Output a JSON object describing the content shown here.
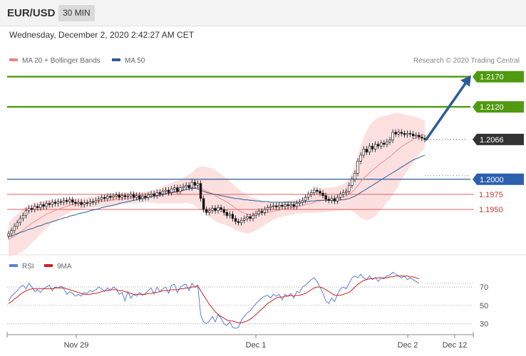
{
  "header": {
    "symbol": "EUR/USD",
    "timeframe": "30 MIN"
  },
  "datetime": "Wednesday, December 2, 2020 2:42:27 AM CET",
  "legend": {
    "ma20": "MA 20 + Bollinger Bands",
    "ma50": "MA 50",
    "ma20_color": "#f08080",
    "ma50_color": "#2c5d9a",
    "credit": "Research © 2020 Trading Central"
  },
  "rsi_legend": {
    "rsi": "RSI",
    "ma9": "9MA",
    "rsi_color": "#5b7fd6",
    "ma9_color": "#cc2222"
  },
  "colors": {
    "target": "#4f9a0f",
    "pivot": "#2c5d9a",
    "support": "#e06060",
    "last": "#333333",
    "arrow": "#2c5d9a"
  },
  "chart_data": [
    {
      "type": "candlestick",
      "ylim": [
        1.189,
        1.2185
      ],
      "x_ticks": [
        "Nov 29",
        "Dec 1",
        "Dec 2",
        "Dec 12"
      ],
      "levels": [
        {
          "label": "1.2170",
          "value": 1.217,
          "kind": "target"
        },
        {
          "label": "1.2120",
          "value": 1.212,
          "kind": "target"
        },
        {
          "label": "1.2066",
          "value": 1.2066,
          "kind": "last"
        },
        {
          "label": "1.2000",
          "value": 1.2,
          "kind": "pivot"
        },
        {
          "label": "1.1975",
          "value": 1.1975,
          "kind": "support"
        },
        {
          "label": "1.1950",
          "value": 1.195,
          "kind": "support"
        }
      ],
      "close": [
        1.191,
        1.1915,
        1.1922,
        1.1928,
        1.1935,
        1.194,
        1.1948,
        1.1952,
        1.195,
        1.1955,
        1.1953,
        1.1958,
        1.1955,
        1.196,
        1.1958,
        1.1962,
        1.196,
        1.1963,
        1.1962,
        1.1965,
        1.1963,
        1.1966,
        1.1962,
        1.196,
        1.1962,
        1.1958,
        1.1961,
        1.196,
        1.1963,
        1.1962,
        1.1965,
        1.1967,
        1.197,
        1.1968,
        1.1972,
        1.197,
        1.1972,
        1.1974,
        1.197,
        1.1973,
        1.1971,
        1.1972,
        1.1975,
        1.197,
        1.1973,
        1.1968,
        1.1972,
        1.197,
        1.1974,
        1.1976,
        1.1973,
        1.1978,
        1.1976,
        1.198,
        1.1982,
        1.1978,
        1.1984,
        1.1986,
        1.198,
        1.1986,
        1.1988,
        1.199,
        1.1986,
        1.1995,
        1.199,
        1.1993,
        1.1968,
        1.195,
        1.1945,
        1.1948,
        1.1952,
        1.1948,
        1.1953,
        1.195,
        1.1945,
        1.194,
        1.1942,
        1.1935,
        1.193,
        1.1928,
        1.1932,
        1.1935,
        1.1938,
        1.1935,
        1.194,
        1.1943,
        1.1947,
        1.1945,
        1.195,
        1.1953,
        1.1955,
        1.1956,
        1.1954,
        1.1957,
        1.1955,
        1.1958,
        1.1956,
        1.1958,
        1.1955,
        1.196,
        1.1962,
        1.1965,
        1.197,
        1.1975,
        1.1978,
        1.1982,
        1.198,
        1.1977,
        1.1973,
        1.1967,
        1.1965,
        1.1968,
        1.1964,
        1.197,
        1.1975,
        1.1978,
        1.198,
        1.199,
        1.2,
        1.201,
        1.203,
        1.204,
        1.205,
        1.2045,
        1.2055,
        1.205,
        1.2058,
        1.2055,
        1.206,
        1.2058,
        1.2062,
        1.2065,
        1.2078,
        1.2075,
        1.2078,
        1.2076,
        1.2074,
        1.2076,
        1.2075,
        1.2072,
        1.2073,
        1.207,
        1.2068,
        1.2066
      ],
      "ma20": [
        1.19,
        1.1903,
        1.1906,
        1.1909,
        1.1912,
        1.1916,
        1.192,
        1.1923,
        1.1927,
        1.193,
        1.1933,
        1.1936,
        1.1939,
        1.1942,
        1.1944,
        1.1946,
        1.1948,
        1.195,
        1.1952,
        1.1954,
        1.1955,
        1.1957,
        1.1958,
        1.1959,
        1.196,
        1.196,
        1.1961,
        1.1961,
        1.1962,
        1.1962,
        1.1963,
        1.1963,
        1.1964,
        1.1964,
        1.1965,
        1.1965,
        1.1966,
        1.1966,
        1.1967,
        1.1967,
        1.1968,
        1.1968,
        1.1969,
        1.1969,
        1.197,
        1.197,
        1.197,
        1.197,
        1.1971,
        1.1971,
        1.1972,
        1.1972,
        1.1973,
        1.1974,
        1.1975,
        1.1976,
        1.1977,
        1.1978,
        1.1979,
        1.198,
        1.1981,
        1.1983,
        1.1984,
        1.1985,
        1.1986,
        1.1986,
        1.1985,
        1.1983,
        1.198,
        1.1978,
        1.1976,
        1.1973,
        1.197,
        1.1967,
        1.1965,
        1.1962,
        1.1959,
        1.1956,
        1.1952,
        1.1949,
        1.1946,
        1.1944,
        1.1942,
        1.1941,
        1.1941,
        1.1942,
        1.1942,
        1.1943,
        1.1944,
        1.1945,
        1.1946,
        1.1947,
        1.1948,
        1.1949,
        1.195,
        1.1951,
        1.1952,
        1.1953,
        1.1954,
        1.1955,
        1.1956,
        1.1957,
        1.1958,
        1.1959,
        1.196,
        1.1962,
        1.1963,
        1.1964,
        1.1965,
        1.1966,
        1.1966,
        1.1967,
        1.1967,
        1.1968,
        1.1969,
        1.197,
        1.1972,
        1.1975,
        1.1979,
        1.1984,
        1.199,
        1.1996,
        1.2002,
        1.2006,
        1.2011,
        1.2015,
        1.2019,
        1.2023,
        1.2027,
        1.203,
        1.2034,
        1.2037,
        1.2042,
        1.2046,
        1.205,
        1.2054,
        1.2057,
        1.206,
        1.2063,
        1.2066,
        1.2069,
        1.2071,
        1.2073,
        1.2074
      ],
      "bb_width": [
        0.0028,
        0.003,
        0.0032,
        0.0033,
        0.0034,
        0.0035,
        0.0035,
        0.0034,
        0.0033,
        0.0031,
        0.0029,
        0.0027,
        0.0025,
        0.0023,
        0.0021,
        0.0019,
        0.0018,
        0.0016,
        0.0015,
        0.0014,
        0.0013,
        0.0012,
        0.0011,
        0.001,
        0.0009,
        0.0009,
        0.0009,
        0.0009,
        0.0009,
        0.0009,
        0.0009,
        0.0009,
        0.0009,
        0.0009,
        0.0009,
        0.0009,
        0.0009,
        0.0009,
        0.0009,
        0.0009,
        0.0009,
        0.0009,
        0.0009,
        0.0009,
        0.0009,
        0.0009,
        0.0009,
        0.0009,
        0.0009,
        0.001,
        0.0011,
        0.0012,
        0.0013,
        0.0014,
        0.0015,
        0.0016,
        0.0017,
        0.0018,
        0.0019,
        0.002,
        0.0021,
        0.0022,
        0.0024,
        0.0026,
        0.003,
        0.0034,
        0.0036,
        0.0038,
        0.004,
        0.0041,
        0.0042,
        0.0042,
        0.0042,
        0.0041,
        0.004,
        0.0039,
        0.0038,
        0.0037,
        0.0036,
        0.0035,
        0.0034,
        0.0033,
        0.0032,
        0.003,
        0.0028,
        0.0026,
        0.0024,
        0.0022,
        0.002,
        0.0018,
        0.0016,
        0.0014,
        0.0013,
        0.0012,
        0.0012,
        0.0012,
        0.0012,
        0.0012,
        0.0012,
        0.0012,
        0.0012,
        0.0013,
        0.0014,
        0.0015,
        0.0016,
        0.0017,
        0.0018,
        0.0019,
        0.002,
        0.002,
        0.002,
        0.002,
        0.002,
        0.002,
        0.0021,
        0.0022,
        0.0023,
        0.0026,
        0.0032,
        0.004,
        0.005,
        0.006,
        0.0068,
        0.0074,
        0.0078,
        0.008,
        0.008,
        0.0079,
        0.0077,
        0.0075,
        0.0072,
        0.007,
        0.0067,
        0.0064,
        0.006,
        0.0055,
        0.005,
        0.0046,
        0.0042,
        0.0038,
        0.0034,
        0.003,
        0.0026,
        0.0023,
        0.0021,
        0.002
      ],
      "ma50": [
        1.1905,
        1.1906,
        1.1908,
        1.191,
        1.1912,
        1.1913,
        1.1915,
        1.1917,
        1.1918,
        1.192,
        1.1922,
        1.1923,
        1.1925,
        1.1927,
        1.1928,
        1.193,
        1.1931,
        1.1933,
        1.1934,
        1.1936,
        1.1937,
        1.1939,
        1.194,
        1.1941,
        1.1943,
        1.1944,
        1.1945,
        1.1946,
        1.1948,
        1.1949,
        1.195,
        1.1951,
        1.1953,
        1.1954,
        1.1955,
        1.1956,
        1.1957,
        1.1958,
        1.196,
        1.1961,
        1.1962,
        1.1963,
        1.1964,
        1.1965,
        1.1966,
        1.1967,
        1.1968,
        1.1969,
        1.197,
        1.1971,
        1.1972,
        1.1973,
        1.1974,
        1.1975,
        1.1976,
        1.1977,
        1.1978,
        1.1979,
        1.198,
        1.1981,
        1.1982,
        1.1983,
        1.1984,
        1.1985,
        1.1985,
        1.1984,
        1.1982,
        1.198,
        1.1978,
        1.1977,
        1.1976,
        1.1975,
        1.1974,
        1.1973,
        1.1972,
        1.1971,
        1.197,
        1.1969,
        1.1968,
        1.1968,
        1.1967,
        1.1966,
        1.1966,
        1.1965,
        1.1965,
        1.1964,
        1.1964,
        1.1963,
        1.1963,
        1.1963,
        1.1962,
        1.1962,
        1.1962,
        1.1962,
        1.1962,
        1.1962,
        1.1962,
        1.1962,
        1.1962,
        1.1962,
        1.1962,
        1.1962,
        1.1963,
        1.1963,
        1.1964,
        1.1964,
        1.1965,
        1.1965,
        1.1965,
        1.1965,
        1.1965,
        1.1965,
        1.1965,
        1.1965,
        1.1966,
        1.1966,
        1.1967,
        1.1968,
        1.197,
        1.1972,
        1.1975,
        1.1978,
        1.1981,
        1.1984,
        1.1987,
        1.199,
        1.1993,
        1.1996,
        1.1999,
        1.2002,
        1.2005,
        1.2008,
        1.2011,
        1.2014,
        1.2017,
        1.202,
        1.2023,
        1.2026,
        1.2029,
        1.2032,
        1.2034,
        1.2036,
        1.2038,
        1.204
      ],
      "target_arrow": {
        "from": 1.2066,
        "to": 1.217
      }
    },
    {
      "type": "line",
      "ylim": [
        22,
        84
      ],
      "y_ticks": [
        30,
        50,
        70
      ],
      "series": [
        {
          "name": "RSI",
          "values": [
            55,
            60,
            63,
            66,
            70,
            72,
            68,
            74,
            70,
            65,
            67,
            64,
            68,
            70,
            72,
            66,
            70,
            69,
            71,
            68,
            62,
            65,
            63,
            60,
            62,
            60,
            64,
            63,
            66,
            65,
            67,
            70,
            68,
            65,
            69,
            66,
            70,
            68,
            62,
            64,
            55,
            65,
            58,
            62,
            60,
            64,
            61,
            63,
            66,
            69,
            62,
            70,
            65,
            68,
            70,
            63,
            72,
            73,
            64,
            70,
            72,
            73,
            66,
            74,
            70,
            72,
            40,
            32,
            30,
            33,
            38,
            32,
            40,
            36,
            30,
            28,
            32,
            26,
            25,
            26,
            34,
            38,
            42,
            44,
            48,
            52,
            55,
            58,
            60,
            61,
            58,
            62,
            60,
            62,
            56,
            62,
            60,
            63,
            58,
            65,
            64,
            70,
            72,
            75,
            78,
            80,
            76,
            70,
            63,
            55,
            52,
            58,
            54,
            62,
            68,
            70,
            68,
            74,
            80,
            82,
            80,
            84,
            80,
            78,
            82,
            78,
            80,
            76,
            80,
            79,
            82,
            83,
            86,
            84,
            82,
            80,
            82,
            78,
            80,
            78,
            76,
            74
          ]
        },
        {
          "name": "9MA",
          "values": [
            52,
            54,
            57,
            59,
            62,
            64,
            66,
            67,
            68,
            68,
            68,
            68,
            68,
            68,
            68,
            68,
            69,
            69,
            69,
            69,
            68,
            67,
            66,
            65,
            64,
            63,
            62,
            62,
            62,
            63,
            63,
            64,
            65,
            66,
            66,
            67,
            67,
            67,
            66,
            66,
            65,
            64,
            63,
            62,
            62,
            62,
            62,
            62,
            63,
            63,
            64,
            64,
            65,
            66,
            66,
            66,
            67,
            67,
            67,
            68,
            68,
            69,
            69,
            70,
            70,
            71,
            66,
            61,
            56,
            51,
            47,
            43,
            40,
            38,
            36,
            34,
            33,
            33,
            32,
            31,
            31,
            32,
            33,
            35,
            37,
            40,
            43,
            46,
            49,
            52,
            54,
            56,
            58,
            59,
            59,
            60,
            60,
            61,
            60,
            61,
            61,
            62,
            63,
            65,
            67,
            69,
            70,
            70,
            69,
            67,
            65,
            63,
            61,
            61,
            61,
            62,
            63,
            64,
            67,
            70,
            73,
            75,
            77,
            78,
            79,
            79,
            80,
            80,
            80,
            80,
            80,
            81,
            81,
            82,
            82,
            82,
            82,
            82,
            81,
            81,
            80,
            79
          ]
        }
      ]
    }
  ]
}
